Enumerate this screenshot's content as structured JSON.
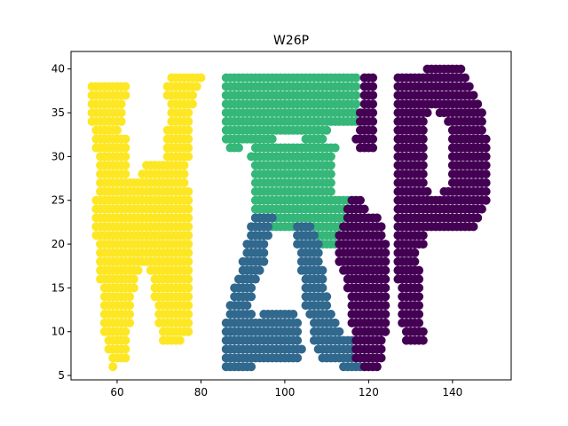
{
  "chart_data": {
    "type": "scatter",
    "title": "W26P",
    "xlabel": "",
    "ylabel": "",
    "xlim": [
      49,
      154
    ],
    "ylim": [
      4.5,
      42
    ],
    "xticks": [
      60,
      80,
      100,
      120,
      140
    ],
    "yticks": [
      5,
      10,
      15,
      20,
      25,
      30,
      35,
      40
    ],
    "grid": false,
    "legend": "none",
    "step": 1,
    "series": [
      {
        "color": "#fde725",
        "runs": [
          [
            6,
            59,
            59
          ],
          [
            7,
            59,
            62
          ],
          [
            8,
            58,
            62
          ],
          [
            9,
            58,
            62
          ],
          [
            9,
            71,
            75
          ],
          [
            10,
            57,
            62
          ],
          [
            10,
            71,
            77
          ],
          [
            11,
            57,
            63
          ],
          [
            11,
            70,
            77
          ],
          [
            12,
            57,
            63
          ],
          [
            12,
            70,
            77
          ],
          [
            13,
            57,
            63
          ],
          [
            13,
            70,
            77
          ],
          [
            14,
            57,
            63
          ],
          [
            14,
            69,
            77
          ],
          [
            15,
            57,
            64
          ],
          [
            15,
            69,
            77
          ],
          [
            16,
            56,
            64
          ],
          [
            16,
            69,
            77
          ],
          [
            17,
            56,
            65
          ],
          [
            17,
            68,
            77
          ],
          [
            18,
            56,
            77
          ],
          [
            19,
            56,
            77
          ],
          [
            20,
            56,
            77
          ],
          [
            21,
            55,
            77
          ],
          [
            22,
            55,
            77
          ],
          [
            23,
            55,
            77
          ],
          [
            24,
            55,
            77
          ],
          [
            25,
            55,
            77
          ],
          [
            26,
            56,
            77
          ],
          [
            27,
            56,
            76
          ],
          [
            28,
            56,
            62
          ],
          [
            28,
            66,
            76
          ],
          [
            29,
            56,
            62
          ],
          [
            29,
            67,
            76
          ],
          [
            30,
            56,
            62
          ],
          [
            30,
            72,
            77
          ],
          [
            31,
            55,
            62
          ],
          [
            31,
            72,
            77
          ],
          [
            32,
            55,
            62
          ],
          [
            32,
            72,
            77
          ],
          [
            33,
            55,
            60
          ],
          [
            33,
            72,
            77
          ],
          [
            34,
            54,
            61
          ],
          [
            34,
            73,
            77
          ],
          [
            35,
            54,
            61
          ],
          [
            35,
            73,
            77
          ],
          [
            36,
            54,
            61
          ],
          [
            36,
            73,
            78
          ],
          [
            37,
            54,
            62
          ],
          [
            37,
            72,
            78
          ],
          [
            38,
            54,
            62
          ],
          [
            38,
            72,
            79
          ],
          [
            39,
            73,
            80
          ]
        ]
      },
      {
        "color": "#35b779",
        "runs": [
          [
            39,
            86,
            117
          ],
          [
            38,
            86,
            117
          ],
          [
            37,
            86,
            117
          ],
          [
            36,
            86,
            117
          ],
          [
            35,
            86,
            117
          ],
          [
            34,
            86,
            117
          ],
          [
            33,
            86,
            110
          ],
          [
            32,
            86,
            97
          ],
          [
            32,
            105,
            109
          ],
          [
            31,
            87,
            89
          ],
          [
            31,
            93,
            112
          ],
          [
            30,
            92,
            111
          ],
          [
            29,
            93,
            111
          ],
          [
            28,
            93,
            111
          ],
          [
            27,
            93,
            111
          ],
          [
            26,
            93,
            111
          ],
          [
            25,
            93,
            117
          ],
          [
            24,
            93,
            117
          ],
          [
            23,
            93,
            117
          ],
          [
            22,
            97,
            117
          ],
          [
            21,
            103,
            117
          ],
          [
            20,
            107,
            112
          ]
        ]
      },
      {
        "color": "#31688e",
        "runs": [
          [
            23,
            93,
            97
          ],
          [
            22,
            92,
            96
          ],
          [
            22,
            103,
            106
          ],
          [
            21,
            92,
            96
          ],
          [
            21,
            103,
            107
          ],
          [
            20,
            91,
            95
          ],
          [
            20,
            103,
            108
          ],
          [
            19,
            91,
            95
          ],
          [
            19,
            104,
            108
          ],
          [
            18,
            90,
            95
          ],
          [
            18,
            104,
            108
          ],
          [
            17,
            90,
            94
          ],
          [
            17,
            104,
            109
          ],
          [
            16,
            89,
            93
          ],
          [
            16,
            105,
            109
          ],
          [
            15,
            88,
            92
          ],
          [
            15,
            105,
            109
          ],
          [
            14,
            88,
            92
          ],
          [
            14,
            105,
            110
          ],
          [
            13,
            87,
            91
          ],
          [
            13,
            105,
            110
          ],
          [
            12,
            87,
            92
          ],
          [
            12,
            95,
            102
          ],
          [
            12,
            106,
            111
          ],
          [
            11,
            86,
            103
          ],
          [
            11,
            107,
            112
          ],
          [
            10,
            86,
            103
          ],
          [
            10,
            107,
            113
          ],
          [
            9,
            86,
            103
          ],
          [
            9,
            107,
            116
          ],
          [
            8,
            86,
            104
          ],
          [
            8,
            108,
            116
          ],
          [
            7,
            86,
            103
          ],
          [
            7,
            109,
            117
          ],
          [
            6,
            86,
            92
          ],
          [
            6,
            114,
            118
          ]
        ]
      },
      {
        "color": "#440154",
        "runs": [
          [
            40,
            134,
            142
          ],
          [
            39,
            119,
            121
          ],
          [
            39,
            127,
            143
          ],
          [
            38,
            119,
            121
          ],
          [
            38,
            127,
            144
          ],
          [
            37,
            119,
            121
          ],
          [
            37,
            127,
            145
          ],
          [
            36,
            119,
            121
          ],
          [
            36,
            127,
            146
          ],
          [
            35,
            118,
            121
          ],
          [
            35,
            127,
            134
          ],
          [
            35,
            137,
            147
          ],
          [
            34,
            118,
            121
          ],
          [
            34,
            127,
            133
          ],
          [
            34,
            139,
            147
          ],
          [
            33,
            118,
            121
          ],
          [
            33,
            127,
            133
          ],
          [
            33,
            140,
            147
          ],
          [
            32,
            117,
            121
          ],
          [
            32,
            127,
            133
          ],
          [
            32,
            140,
            148
          ],
          [
            31,
            118,
            121
          ],
          [
            31,
            127,
            133
          ],
          [
            31,
            140,
            148
          ],
          [
            30,
            127,
            133
          ],
          [
            30,
            140,
            148
          ],
          [
            29,
            127,
            133
          ],
          [
            29,
            140,
            148
          ],
          [
            28,
            127,
            133
          ],
          [
            28,
            140,
            148
          ],
          [
            27,
            127,
            133
          ],
          [
            27,
            140,
            148
          ],
          [
            26,
            127,
            134
          ],
          [
            26,
            138,
            148
          ],
          [
            25,
            116,
            118
          ],
          [
            25,
            127,
            148
          ],
          [
            24,
            115,
            119
          ],
          [
            24,
            127,
            147
          ],
          [
            23,
            115,
            122
          ],
          [
            23,
            127,
            146
          ],
          [
            22,
            114,
            123
          ],
          [
            22,
            127,
            145
          ],
          [
            21,
            113,
            123
          ],
          [
            21,
            127,
            133
          ],
          [
            20,
            113,
            124
          ],
          [
            20,
            127,
            133
          ],
          [
            19,
            113,
            124
          ],
          [
            19,
            127,
            131
          ],
          [
            18,
            113,
            124
          ],
          [
            18,
            127,
            131
          ],
          [
            17,
            114,
            124
          ],
          [
            17,
            127,
            132
          ],
          [
            16,
            115,
            124
          ],
          [
            16,
            127,
            132
          ],
          [
            15,
            115,
            124
          ],
          [
            15,
            128,
            132
          ],
          [
            14,
            116,
            124
          ],
          [
            14,
            128,
            132
          ],
          [
            13,
            116,
            124
          ],
          [
            13,
            128,
            132
          ],
          [
            12,
            116,
            124
          ],
          [
            12,
            128,
            132
          ],
          [
            11,
            116,
            124
          ],
          [
            11,
            128,
            132
          ],
          [
            10,
            117,
            124
          ],
          [
            10,
            129,
            133
          ],
          [
            9,
            117,
            123
          ],
          [
            9,
            129,
            133
          ],
          [
            8,
            117,
            123
          ],
          [
            7,
            117,
            123
          ],
          [
            6,
            119,
            122
          ]
        ]
      }
    ]
  }
}
